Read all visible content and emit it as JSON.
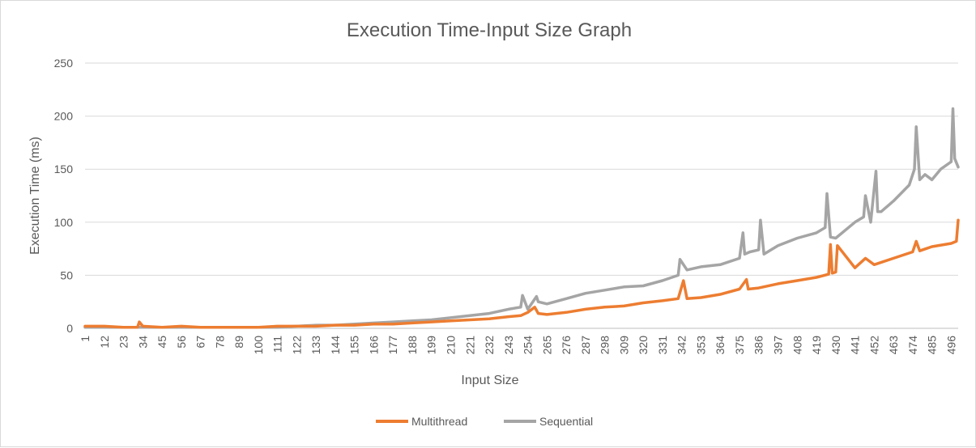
{
  "chart_data": {
    "type": "line",
    "title": "Execution Time-Input Size Graph",
    "xlabel": "Input Size",
    "ylabel": "Execution Time (ms)",
    "ylim": [
      0,
      250
    ],
    "yticks": [
      0,
      50,
      100,
      150,
      200,
      250
    ],
    "xlim": [
      1,
      500
    ],
    "xticks": [
      1,
      12,
      23,
      34,
      45,
      56,
      67,
      78,
      89,
      100,
      111,
      122,
      133,
      144,
      155,
      166,
      177,
      188,
      199,
      210,
      221,
      232,
      243,
      254,
      265,
      276,
      287,
      298,
      309,
      320,
      331,
      342,
      353,
      364,
      375,
      386,
      397,
      408,
      419,
      430,
      441,
      452,
      463,
      474,
      485,
      496
    ],
    "grid": "horizontal",
    "legend_position": "bottom",
    "series": [
      {
        "name": "Multithread",
        "color": "#ed7d31",
        "x": [
          1,
          12,
          23,
          31,
          32,
          34,
          45,
          56,
          67,
          78,
          89,
          100,
          111,
          122,
          133,
          144,
          155,
          166,
          177,
          188,
          199,
          210,
          221,
          232,
          243,
          250,
          254,
          258,
          260,
          265,
          276,
          287,
          298,
          309,
          320,
          331,
          340,
          343,
          345,
          353,
          364,
          375,
          379,
          380,
          386,
          397,
          408,
          419,
          426,
          427,
          428,
          430,
          431,
          441,
          447,
          452,
          463,
          474,
          476,
          478,
          485,
          496,
          499,
          500
        ],
        "values": [
          2,
          2,
          1,
          1,
          6,
          2,
          1,
          2,
          1,
          1,
          1,
          1,
          2,
          2,
          2,
          3,
          3,
          4,
          4,
          5,
          6,
          7,
          8,
          9,
          11,
          12,
          15,
          20,
          14,
          13,
          15,
          18,
          20,
          21,
          24,
          26,
          28,
          45,
          28,
          29,
          32,
          37,
          46,
          37,
          38,
          42,
          45,
          48,
          51,
          79,
          52,
          53,
          78,
          57,
          66,
          60,
          66,
          72,
          82,
          73,
          77,
          80,
          82,
          102
        ]
      },
      {
        "name": "Sequential",
        "color": "#a5a5a5",
        "x": [
          1,
          12,
          23,
          34,
          45,
          56,
          67,
          78,
          89,
          100,
          111,
          122,
          133,
          144,
          155,
          166,
          177,
          188,
          199,
          210,
          221,
          232,
          243,
          250,
          251,
          254,
          259,
          260,
          265,
          276,
          287,
          298,
          309,
          320,
          331,
          340,
          341,
          345,
          353,
          364,
          375,
          377,
          378,
          381,
          386,
          387,
          389,
          397,
          408,
          419,
          424,
          425,
          427,
          430,
          441,
          446,
          447,
          450,
          453,
          454,
          456,
          463,
          472,
          475,
          476,
          478,
          481,
          485,
          490,
          496,
          497,
          498,
          500
        ],
        "values": [
          1,
          1,
          1,
          1,
          1,
          1,
          1,
          1,
          1,
          1,
          1,
          2,
          3,
          3,
          4,
          5,
          6,
          7,
          8,
          10,
          12,
          14,
          18,
          20,
          31,
          18,
          30,
          25,
          23,
          28,
          33,
          36,
          39,
          40,
          45,
          50,
          65,
          55,
          58,
          60,
          66,
          90,
          70,
          72,
          74,
          102,
          70,
          78,
          85,
          90,
          95,
          127,
          86,
          85,
          100,
          105,
          125,
          100,
          148,
          110,
          110,
          120,
          135,
          150,
          190,
          140,
          145,
          140,
          150,
          157,
          207,
          160,
          152
        ]
      }
    ]
  }
}
